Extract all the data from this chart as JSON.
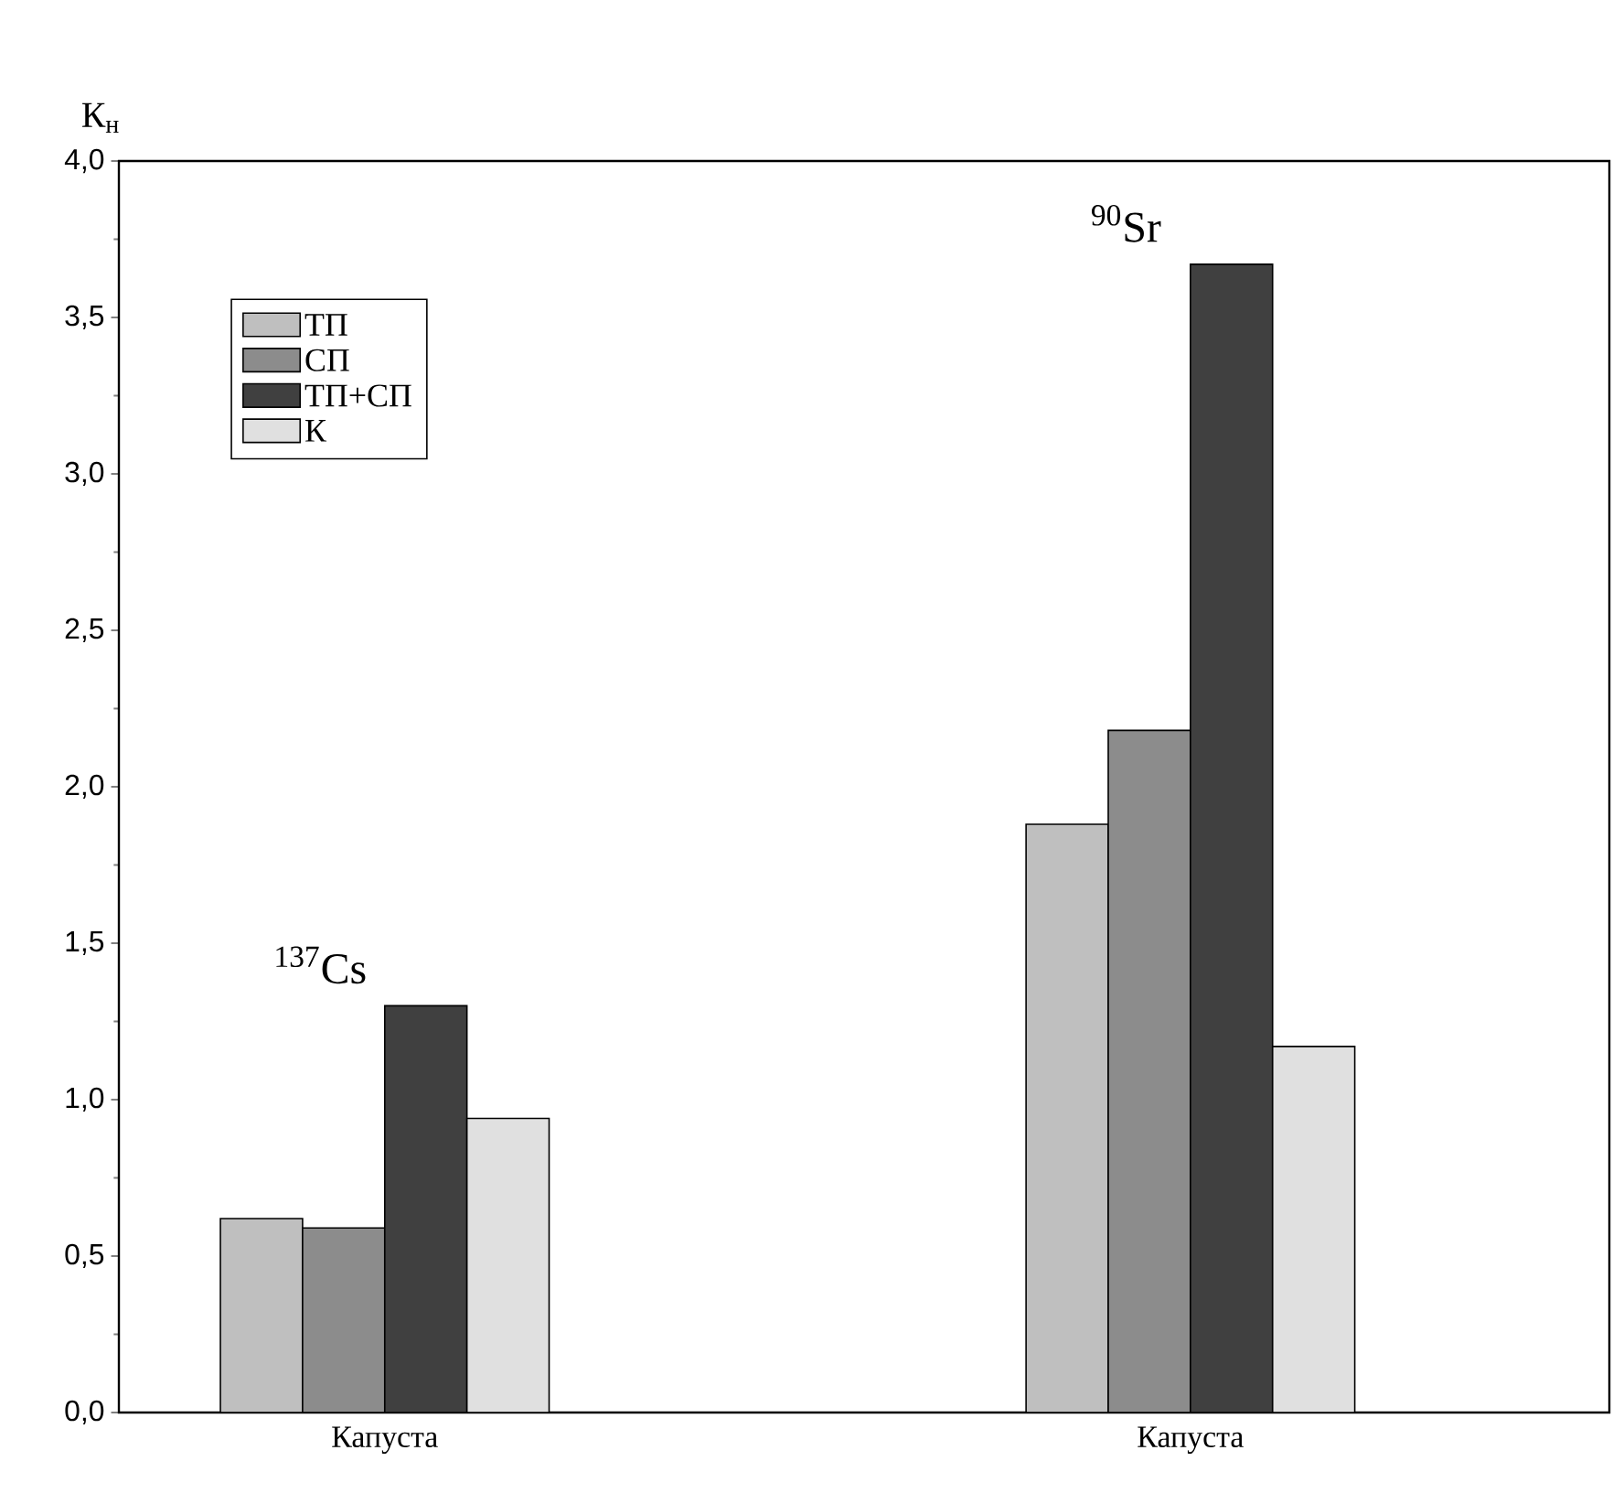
{
  "chart_data": {
    "type": "bar",
    "ylabel": "К$_{н}$",
    "categories": [
      "Капуста",
      "Капуста"
    ],
    "series": [
      {
        "name": "ТП",
        "color": "#bfbfbf",
        "values": [
          0.62,
          1.88
        ]
      },
      {
        "name": "СП",
        "color": "#8c8c8c",
        "values": [
          0.59,
          2.18
        ]
      },
      {
        "name": "ТП+СП",
        "color": "#404040",
        "values": [
          1.3,
          3.67
        ]
      },
      {
        "name": "К",
        "color": "#e0e0e0",
        "values": [
          0.94,
          1.17
        ]
      }
    ],
    "ylim": [
      0,
      4
    ],
    "yticks": [
      {
        "value": 0,
        "label": "0,0"
      },
      {
        "value": 0.5,
        "label": "0,5"
      },
      {
        "value": 1,
        "label": "1,0"
      },
      {
        "value": 1.5,
        "label": "1,5"
      },
      {
        "value": 2,
        "label": "2,0"
      },
      {
        "value": 2.5,
        "label": "2,5"
      },
      {
        "value": 3,
        "label": "3,0"
      },
      {
        "value": 3.5,
        "label": "3,5"
      },
      {
        "value": 4,
        "label": "4,0"
      }
    ],
    "annotations": [
      "$^{137}$Cs",
      "$^{90}$Sr"
    ],
    "legend": "top left",
    "grid": false
  }
}
